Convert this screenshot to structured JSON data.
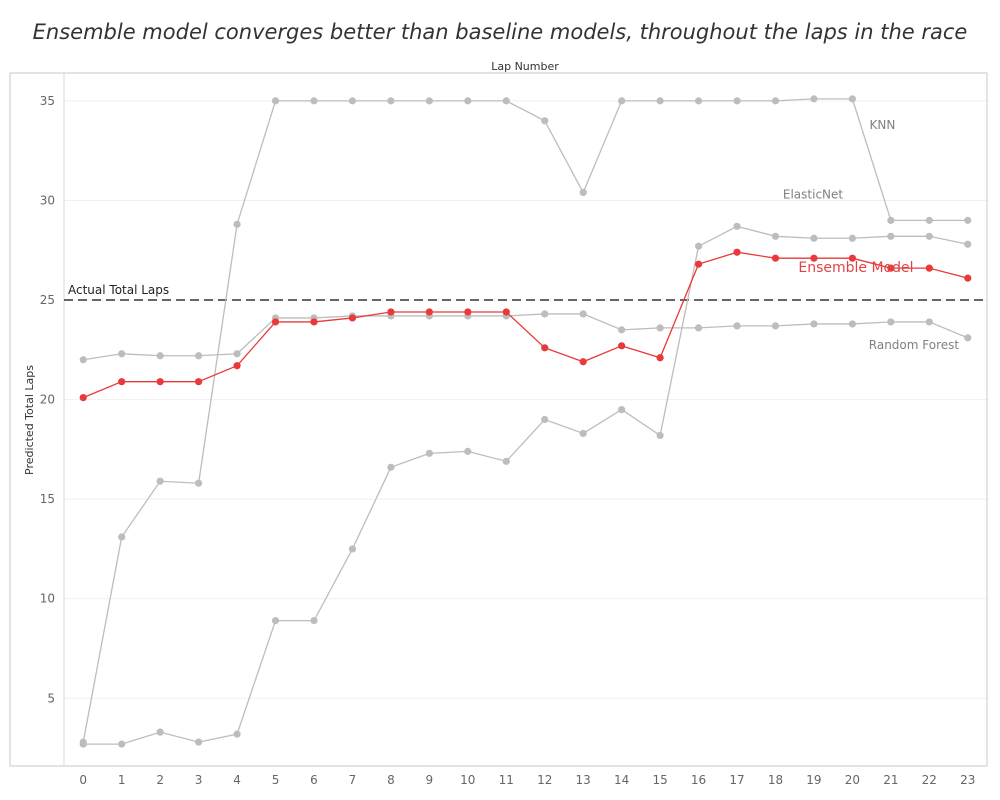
{
  "chart_data": {
    "type": "line",
    "title": "Ensemble model converges better than baseline models, throughout the laps in the race",
    "xlabel": "Lap Number",
    "ylabel": "Predicted Total Laps",
    "x": [
      0,
      1,
      2,
      3,
      4,
      5,
      6,
      7,
      8,
      9,
      10,
      11,
      12,
      13,
      14,
      15,
      16,
      17,
      18,
      19,
      20,
      21,
      22,
      23
    ],
    "xlim": [
      -0.5,
      23.5
    ],
    "ylim": [
      1.6,
      36.4
    ],
    "yticks": [
      5,
      10,
      15,
      20,
      25,
      30,
      35
    ],
    "grid": true,
    "reference_line": {
      "label": "Actual Total Laps",
      "value": 25,
      "color": "#666666"
    },
    "series": [
      {
        "name": "KNN",
        "color": "#bdbdbd",
        "label_at": 20,
        "values": [
          2.8,
          13.1,
          15.9,
          15.8,
          28.8,
          35.0,
          35.0,
          35.0,
          35.0,
          35.0,
          35.0,
          35.0,
          34.0,
          30.4,
          35.0,
          35.0,
          35.0,
          35.0,
          35.0,
          35.1,
          35.1,
          29.0,
          29.0,
          29.0
        ]
      },
      {
        "name": "ElasticNet",
        "color": "#bdbdbd",
        "label_at": 17,
        "values": [
          2.7,
          2.7,
          3.3,
          2.8,
          3.2,
          8.9,
          8.9,
          12.5,
          16.6,
          17.3,
          17.4,
          16.9,
          19.0,
          18.3,
          19.5,
          18.2,
          27.7,
          28.7,
          28.2,
          28.1,
          28.1,
          28.2,
          28.2,
          27.8
        ]
      },
      {
        "name": "Random Forest",
        "color": "#bdbdbd",
        "label_at": 19,
        "values": [
          22.0,
          22.3,
          22.2,
          22.2,
          22.3,
          24.1,
          24.1,
          24.2,
          24.2,
          24.2,
          24.2,
          24.2,
          24.3,
          24.3,
          23.5,
          23.6,
          23.6,
          23.7,
          23.7,
          23.8,
          23.8,
          23.9,
          23.9,
          23.1
        ]
      },
      {
        "name": "Ensemble Model",
        "color": "#e8393b",
        "label_at": 19,
        "values": [
          20.1,
          20.9,
          20.9,
          20.9,
          21.7,
          23.9,
          23.9,
          24.1,
          24.4,
          24.4,
          24.4,
          24.4,
          22.6,
          21.9,
          22.7,
          22.1,
          26.8,
          27.4,
          27.1,
          27.1,
          27.1,
          26.6,
          26.6,
          26.1
        ]
      }
    ]
  }
}
